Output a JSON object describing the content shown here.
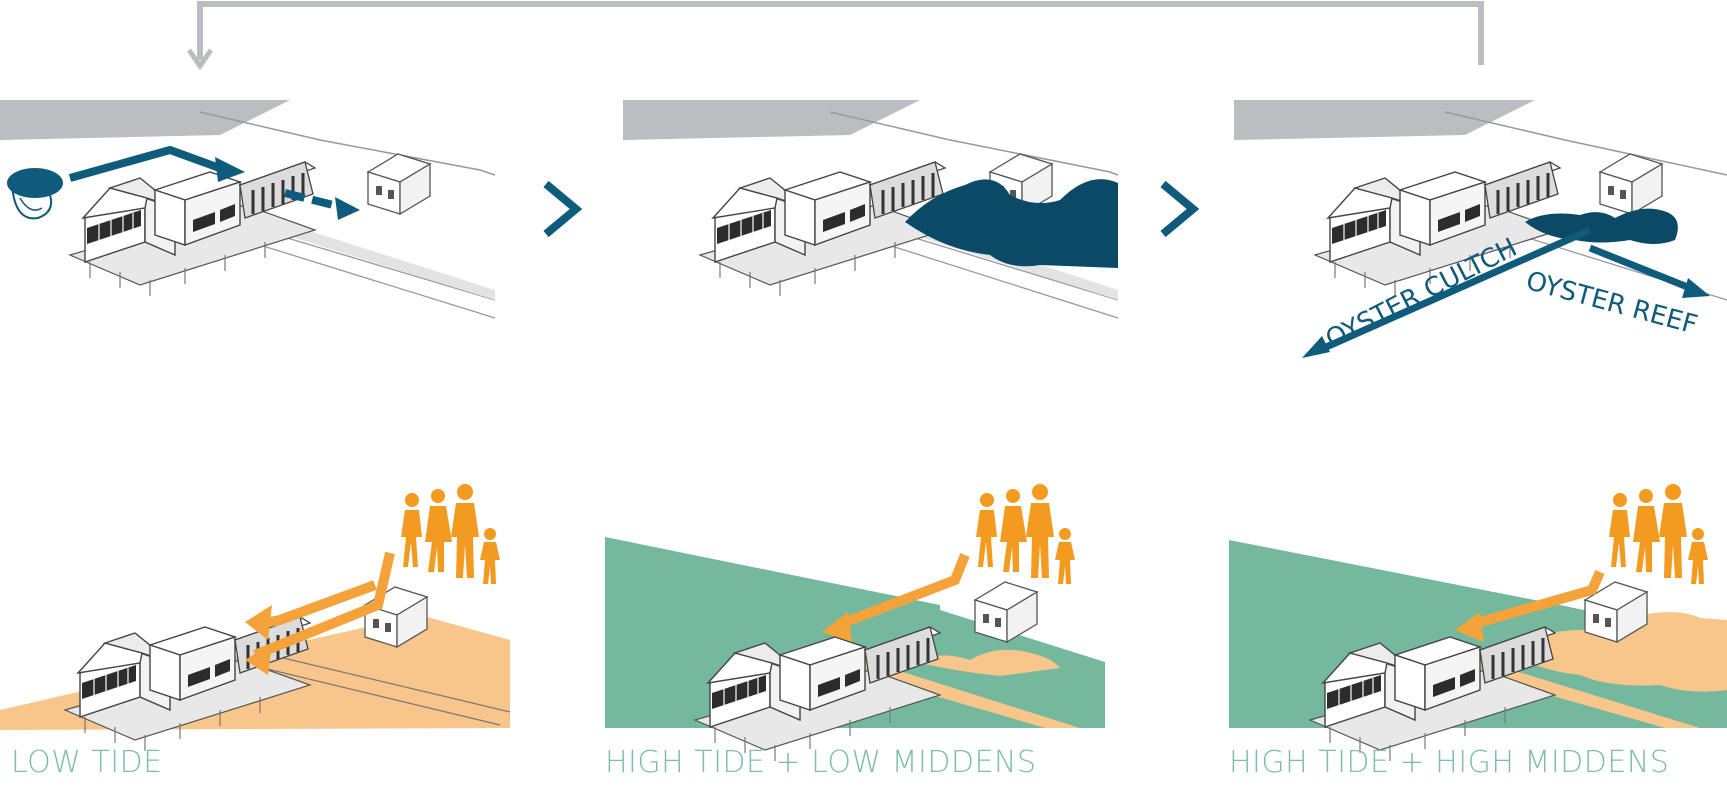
{
  "colors": {
    "teal_dark": "#0e5b7c",
    "navy_blob": "#0b4a67",
    "sand": "#f8c68b",
    "sea_green": "#74b89d",
    "people_orange": "#f39a20",
    "arrow_orange": "#f6a23a",
    "grey_loop": "#bcbdc0",
    "caption_green": "#7dbfa4"
  },
  "panels": [
    {
      "caption": "LOW TIDE"
    },
    {
      "caption": "HIGH TIDE + LOW MIDDENS"
    },
    {
      "caption": "HIGH TIDE + HIGH MIDDENS"
    }
  ],
  "labels": {
    "oyster_cultch": "OYSTER CULTCH",
    "oyster_reef": "OYSTER REEF"
  },
  "icons": [
    "oyster-icon",
    "chevron-right-icon",
    "family-icon",
    "building-icon"
  ]
}
